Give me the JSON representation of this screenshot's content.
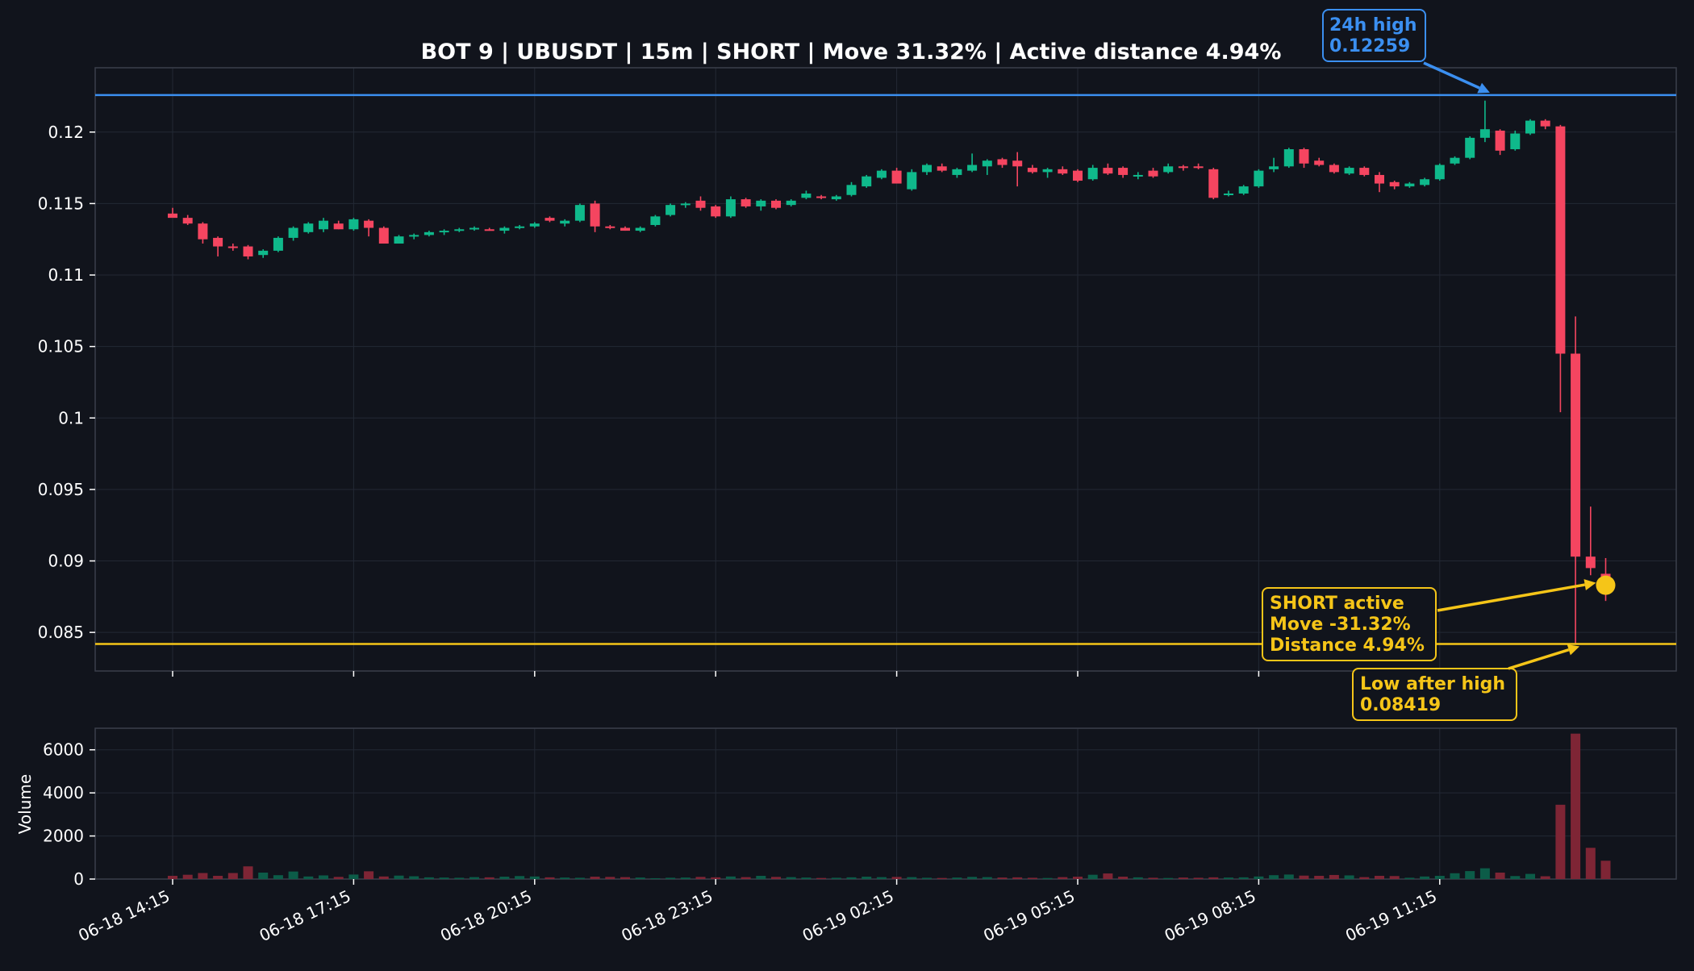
{
  "chart_data": {
    "type": "candlestick",
    "title": "BOT 9 | UBUSDT | 15m | SHORT | Move 31.32% | Active distance 4.94%",
    "ylabel_volume": "Volume",
    "ylim": [
      0.0823,
      0.1245
    ],
    "volume_ylim": [
      0,
      7000
    ],
    "y_ticks": [
      0.085,
      0.09,
      0.095,
      0.1,
      0.105,
      0.11,
      0.115,
      0.12
    ],
    "y_tick_labels": [
      "0.085",
      "0.09",
      "0.095",
      "0.1",
      "0.105",
      "0.11",
      "0.115",
      "0.12"
    ],
    "volume_ticks": [
      0,
      2000,
      4000,
      6000
    ],
    "volume_tick_labels": [
      "0",
      "2000",
      "4000",
      "6000"
    ],
    "x_ticks": [
      "06-18 14:15",
      "06-18 17:15",
      "06-18 20:15",
      "06-18 23:15",
      "06-19 02:15",
      "06-19 05:15",
      "06-19 08:15",
      "06-19 11:15"
    ],
    "x_tick_index": [
      0,
      12,
      24,
      36,
      48,
      60,
      72,
      84
    ],
    "lines": {
      "high_24h": 0.12259,
      "low_after_high": 0.08419
    },
    "annotations": {
      "high": {
        "line1": "24h high",
        "line2": "0.12259",
        "color": "#3b8ff0"
      },
      "short": {
        "line1": "SHORT active",
        "line2": "Move -31.32%",
        "line3": "Distance 4.94%",
        "color": "#f5c518"
      },
      "low": {
        "line1": "Low after high",
        "line2": "0.08419",
        "color": "#f5c518"
      }
    },
    "marker_price": 0.0883,
    "marker_index": 95,
    "colors": {
      "up": "#0fb98b",
      "down": "#f54560",
      "background": "#11141c",
      "grid": "#232834",
      "axis": "#3a3f4b",
      "text": "#ffffff"
    },
    "candles": [
      [
        0.1143,
        0.1147,
        0.1141,
        0.114,
        150
      ],
      [
        0.114,
        0.1142,
        0.1135,
        0.1136,
        200
      ],
      [
        0.1136,
        0.1137,
        0.1122,
        0.1125,
        280
      ],
      [
        0.1126,
        0.1127,
        0.1113,
        0.112,
        150
      ],
      [
        0.112,
        0.1122,
        0.1117,
        0.1119,
        280
      ],
      [
        0.112,
        0.1121,
        0.1111,
        0.1113,
        590
      ],
      [
        0.1114,
        0.1118,
        0.1112,
        0.1117,
        300
      ],
      [
        0.1117,
        0.1127,
        0.1116,
        0.1126,
        180
      ],
      [
        0.1126,
        0.1134,
        0.1124,
        0.1133,
        350
      ],
      [
        0.113,
        0.1137,
        0.1129,
        0.1136,
        120
      ],
      [
        0.1132,
        0.114,
        0.113,
        0.1138,
        170
      ],
      [
        0.1136,
        0.1138,
        0.1132,
        0.1132,
        100
      ],
      [
        0.1132,
        0.114,
        0.1131,
        0.1139,
        210
      ],
      [
        0.1138,
        0.1139,
        0.1127,
        0.1133,
        360
      ],
      [
        0.1133,
        0.1134,
        0.1122,
        0.1122,
        120
      ],
      [
        0.1122,
        0.1128,
        0.1122,
        0.1127,
        160
      ],
      [
        0.1127,
        0.1129,
        0.1125,
        0.1128,
        130
      ],
      [
        0.1128,
        0.1131,
        0.1127,
        0.113,
        80
      ],
      [
        0.113,
        0.1132,
        0.1128,
        0.1131,
        70
      ],
      [
        0.1131,
        0.1133,
        0.113,
        0.1132,
        60
      ],
      [
        0.1132,
        0.1134,
        0.1131,
        0.1133,
        90
      ],
      [
        0.1132,
        0.1133,
        0.1131,
        0.1131,
        80
      ],
      [
        0.1131,
        0.1134,
        0.1129,
        0.1133,
        110
      ],
      [
        0.1133,
        0.1135,
        0.1132,
        0.1134,
        140
      ],
      [
        0.1134,
        0.1137,
        0.1133,
        0.1136,
        120
      ],
      [
        0.114,
        0.1141,
        0.1137,
        0.1138,
        80
      ],
      [
        0.1136,
        0.1139,
        0.1134,
        0.1138,
        70
      ],
      [
        0.1138,
        0.115,
        0.1137,
        0.1149,
        60
      ],
      [
        0.115,
        0.1152,
        0.113,
        0.1134,
        110
      ],
      [
        0.1134,
        0.1135,
        0.1132,
        0.1133,
        100
      ],
      [
        0.1133,
        0.1134,
        0.1131,
        0.1131,
        90
      ],
      [
        0.1131,
        0.1134,
        0.113,
        0.1133,
        70
      ],
      [
        0.1135,
        0.1142,
        0.1134,
        0.1141,
        40
      ],
      [
        0.1142,
        0.115,
        0.1141,
        0.1149,
        60
      ],
      [
        0.1149,
        0.1151,
        0.1147,
        0.115,
        70
      ],
      [
        0.1152,
        0.1155,
        0.1145,
        0.1147,
        100
      ],
      [
        0.1148,
        0.1149,
        0.114,
        0.1141,
        80
      ],
      [
        0.1141,
        0.1155,
        0.114,
        0.1153,
        120
      ],
      [
        0.1153,
        0.1154,
        0.1147,
        0.1148,
        90
      ],
      [
        0.1148,
        0.1153,
        0.1145,
        0.1152,
        150
      ],
      [
        0.1152,
        0.1153,
        0.1146,
        0.1147,
        100
      ],
      [
        0.1149,
        0.1153,
        0.1148,
        0.1152,
        90
      ],
      [
        0.1154,
        0.1159,
        0.1153,
        0.1157,
        70
      ],
      [
        0.1155,
        0.1156,
        0.1153,
        0.1154,
        50
      ],
      [
        0.1153,
        0.1156,
        0.1152,
        0.1155,
        60
      ],
      [
        0.1156,
        0.1165,
        0.1155,
        0.1163,
        80
      ],
      [
        0.1162,
        0.117,
        0.1161,
        0.1169,
        110
      ],
      [
        0.1168,
        0.1174,
        0.1167,
        0.1173,
        90
      ],
      [
        0.1173,
        0.1175,
        0.1166,
        0.1164,
        100
      ],
      [
        0.116,
        0.1174,
        0.1159,
        0.1172,
        90
      ],
      [
        0.1172,
        0.1178,
        0.117,
        0.1177,
        60
      ],
      [
        0.1176,
        0.1178,
        0.1172,
        0.1173,
        50
      ],
      [
        0.117,
        0.1175,
        0.1168,
        0.1174,
        70
      ],
      [
        0.1173,
        0.1185,
        0.1172,
        0.1177,
        100
      ],
      [
        0.1176,
        0.1181,
        0.117,
        0.118,
        90
      ],
      [
        0.1181,
        0.1182,
        0.1175,
        0.1177,
        70
      ],
      [
        0.118,
        0.1186,
        0.1162,
        0.1176,
        80
      ],
      [
        0.1175,
        0.1177,
        0.1171,
        0.1172,
        60
      ],
      [
        0.1172,
        0.1175,
        0.1168,
        0.1174,
        50
      ],
      [
        0.1174,
        0.1176,
        0.117,
        0.1171,
        90
      ],
      [
        0.1173,
        0.1174,
        0.1165,
        0.1166,
        110
      ],
      [
        0.1167,
        0.1177,
        0.1166,
        0.1175,
        200
      ],
      [
        0.1175,
        0.1178,
        0.117,
        0.1171,
        260
      ],
      [
        0.1175,
        0.1176,
        0.1168,
        0.117,
        110
      ],
      [
        0.1169,
        0.1172,
        0.1167,
        0.117,
        80
      ],
      [
        0.1173,
        0.1175,
        0.1168,
        0.1169,
        60
      ],
      [
        0.1172,
        0.1178,
        0.1171,
        0.1176,
        50
      ],
      [
        0.1176,
        0.1177,
        0.1173,
        0.1175,
        70
      ],
      [
        0.1176,
        0.1178,
        0.1174,
        0.1175,
        60
      ],
      [
        0.1174,
        0.1175,
        0.1153,
        0.1154,
        80
      ],
      [
        0.1156,
        0.1159,
        0.1155,
        0.1157,
        70
      ],
      [
        0.1157,
        0.1163,
        0.1156,
        0.1162,
        80
      ],
      [
        0.1162,
        0.1174,
        0.1161,
        0.1173,
        120
      ],
      [
        0.1174,
        0.1182,
        0.1172,
        0.1176,
        180
      ],
      [
        0.1176,
        0.1189,
        0.1175,
        0.1188,
        210
      ],
      [
        0.1188,
        0.1189,
        0.1175,
        0.1178,
        160
      ],
      [
        0.118,
        0.1182,
        0.1176,
        0.1177,
        150
      ],
      [
        0.1177,
        0.1178,
        0.1171,
        0.1172,
        190
      ],
      [
        0.1171,
        0.1176,
        0.117,
        0.1175,
        170
      ],
      [
        0.1175,
        0.1176,
        0.1169,
        0.117,
        90
      ],
      [
        0.117,
        0.1172,
        0.1158,
        0.1164,
        150
      ],
      [
        0.1165,
        0.1166,
        0.116,
        0.1162,
        140
      ],
      [
        0.1162,
        0.1165,
        0.1161,
        0.1164,
        60
      ],
      [
        0.1163,
        0.1168,
        0.1162,
        0.1167,
        120
      ],
      [
        0.1167,
        0.1178,
        0.1166,
        0.1177,
        150
      ],
      [
        0.1178,
        0.1183,
        0.1177,
        0.1182,
        270
      ],
      [
        0.1182,
        0.1197,
        0.1181,
        0.1196,
        370
      ],
      [
        0.1196,
        0.1222,
        0.1193,
        0.1202,
        500
      ],
      [
        0.1201,
        0.1202,
        0.1184,
        0.1187,
        300
      ],
      [
        0.1188,
        0.1201,
        0.1187,
        0.1199,
        140
      ],
      [
        0.1199,
        0.1209,
        0.1198,
        0.1208,
        240
      ],
      [
        0.1208,
        0.1209,
        0.1202,
        0.1204,
        130
      ],
      [
        0.1204,
        0.1205,
        0.1004,
        0.1045,
        3450
      ],
      [
        0.1045,
        0.1071,
        0.0842,
        0.0903,
        6750
      ],
      [
        0.0903,
        0.0938,
        0.089,
        0.0895,
        1450
      ],
      [
        0.0891,
        0.0902,
        0.0872,
        0.0883,
        850
      ]
    ]
  }
}
